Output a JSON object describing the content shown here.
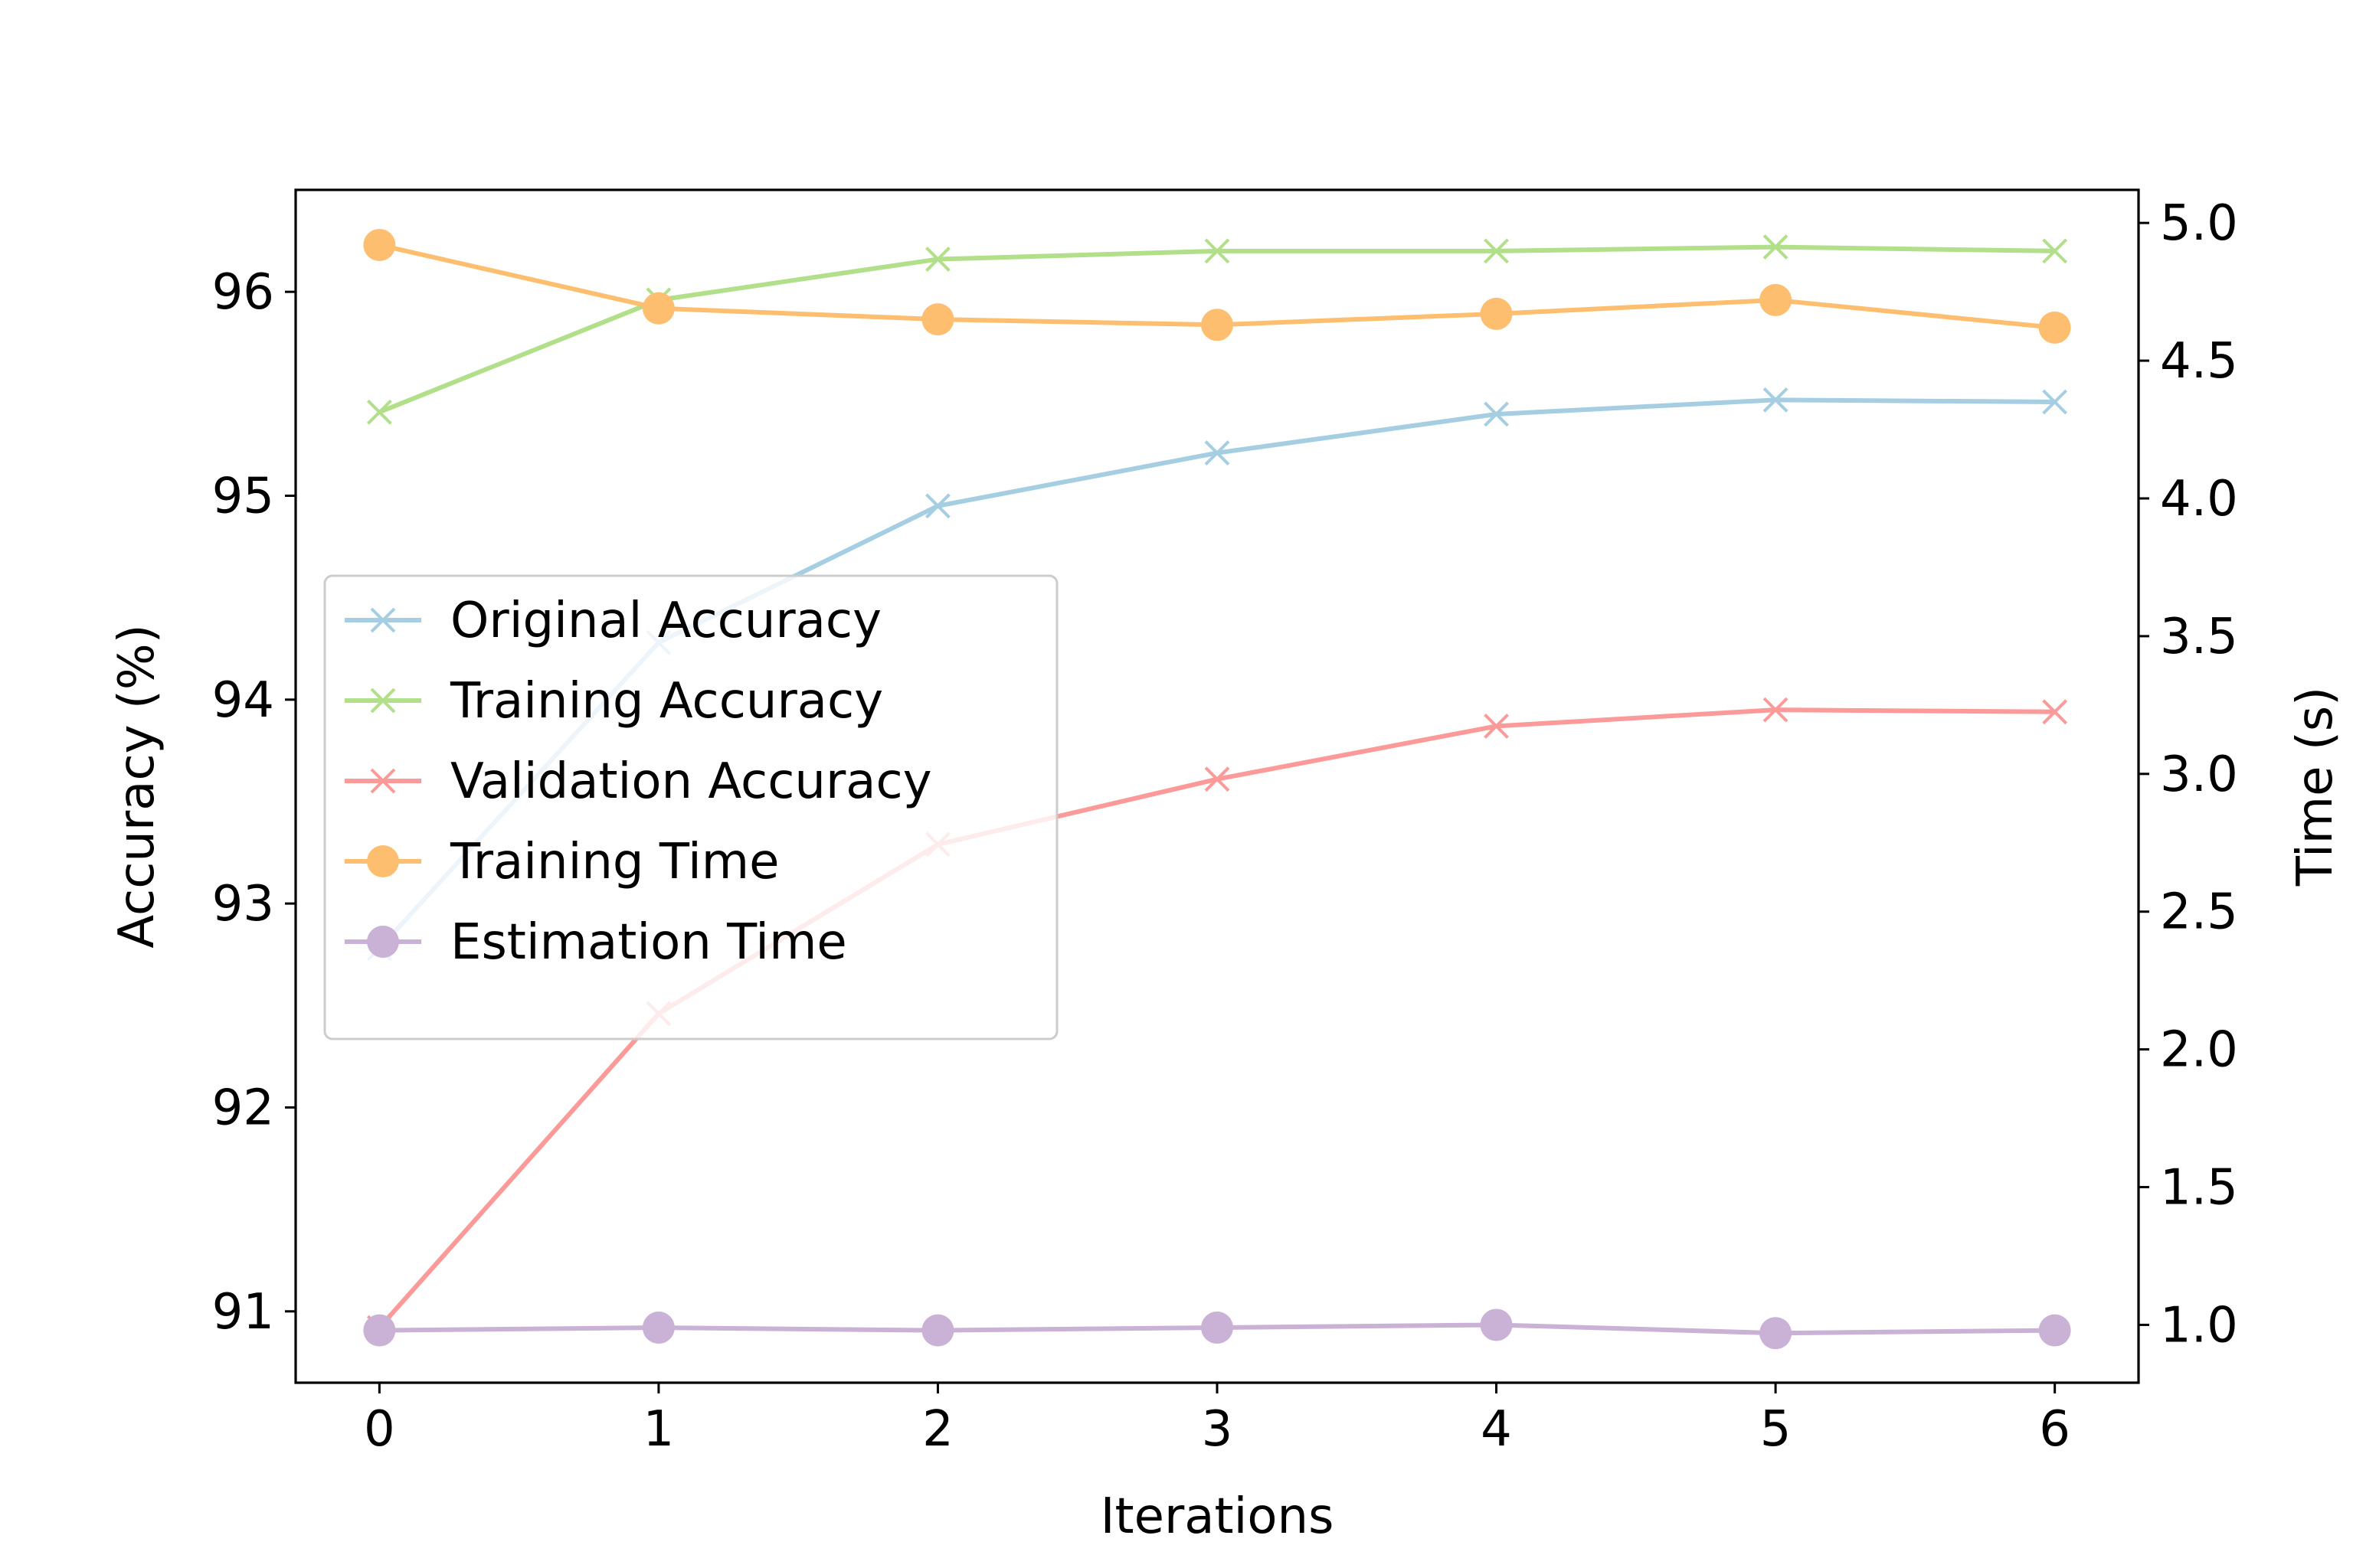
{
  "chart_data": {
    "type": "line",
    "xlabel": "Iterations",
    "ylabel_left": "Accuracy (%)",
    "ylabel_right": "Time (s)",
    "x": [
      0,
      1,
      2,
      3,
      4,
      5,
      6
    ],
    "xticks": [
      "0",
      "1",
      "2",
      "3",
      "4",
      "5",
      "6"
    ],
    "xlim": [
      -0.3,
      6.3
    ],
    "ylim_left": [
      90.65,
      96.5
    ],
    "ylim_right": [
      0.79,
      5.12
    ],
    "yticks_left": [
      "91",
      "92",
      "93",
      "94",
      "95",
      "96"
    ],
    "yticks_right": [
      "1.0",
      "1.5",
      "2.0",
      "2.5",
      "3.0",
      "3.5",
      "4.0",
      "4.5",
      "5.0"
    ],
    "legend_position": "center-left",
    "grid": false,
    "series": [
      {
        "name": "Original Accuracy",
        "axis": "left",
        "marker": "x",
        "color": "#a6cee3",
        "values": [
          92.78,
          94.28,
          94.95,
          95.21,
          95.4,
          95.47,
          95.46
        ]
      },
      {
        "name": "Training Accuracy",
        "axis": "left",
        "marker": "x",
        "color": "#b2df8a",
        "values": [
          95.41,
          95.96,
          96.16,
          96.2,
          96.2,
          96.22,
          96.2
        ]
      },
      {
        "name": "Validation Accuracy",
        "axis": "left",
        "marker": "x",
        "color": "#fb9a99",
        "values": [
          90.92,
          92.46,
          93.29,
          93.61,
          93.87,
          93.95,
          93.94
        ]
      },
      {
        "name": "Training Time",
        "axis": "right",
        "marker": "o",
        "color": "#fdbf6f",
        "values": [
          4.92,
          4.69,
          4.65,
          4.63,
          4.67,
          4.72,
          4.62
        ]
      },
      {
        "name": "Estimation Time",
        "axis": "right",
        "marker": "o",
        "color": "#cab2d6",
        "values": [
          0.98,
          0.99,
          0.98,
          0.99,
          1.0,
          0.97,
          0.98
        ]
      }
    ]
  }
}
